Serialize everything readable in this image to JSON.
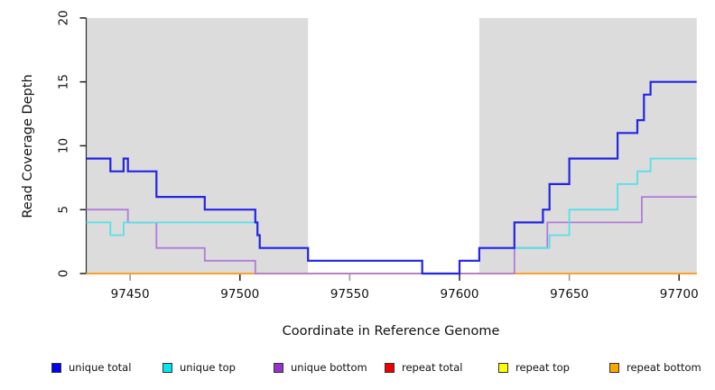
{
  "chart_data": {
    "type": "line",
    "subtype": "step",
    "title": "",
    "xlabel": "Coordinate in Reference Genome",
    "ylabel": "Read Coverage Depth",
    "xlim": [
      97430,
      97708
    ],
    "ylim": [
      0,
      20
    ],
    "grid": false,
    "legend_position": "bottom",
    "x_ticks": [
      {
        "value": 97450,
        "label": "97450",
        "shade": "light"
      },
      {
        "value": 97500,
        "label": "97500",
        "shade": "dark"
      },
      {
        "value": 97550,
        "label": "97550",
        "shade": "light"
      },
      {
        "value": 97600,
        "label": "97600",
        "shade": "dark"
      },
      {
        "value": 97650,
        "label": "97650",
        "shade": "light"
      },
      {
        "value": 97700,
        "label": "97700",
        "shade": "dark"
      }
    ],
    "y_ticks": [
      {
        "value": 0,
        "label": "0"
      },
      {
        "value": 5,
        "label": "5"
      },
      {
        "value": 10,
        "label": "10"
      },
      {
        "value": 15,
        "label": "15"
      },
      {
        "value": 20,
        "label": "20"
      }
    ],
    "shaded_regions": [
      {
        "from": 97430,
        "to": 97531
      },
      {
        "from": 97609,
        "to": 97708
      }
    ],
    "shaded_color": "#dcdcdc",
    "axis_color": "#2b2b2b",
    "minor_tick_color": "#9a9a9a",
    "series": [
      {
        "name": "unique total",
        "color": "#2424e6",
        "legend_color": "#0000ee",
        "steps": [
          [
            97430,
            9
          ],
          [
            97441,
            8
          ],
          [
            97447,
            9
          ],
          [
            97449,
            8
          ],
          [
            97462,
            6
          ],
          [
            97484,
            5
          ],
          [
            97507,
            4
          ],
          [
            97508,
            3
          ],
          [
            97509,
            2
          ],
          [
            97531,
            1
          ],
          [
            97583,
            0
          ],
          [
            97600,
            1
          ],
          [
            97609,
            2
          ],
          [
            97625,
            4
          ],
          [
            97638,
            5
          ],
          [
            97641,
            7
          ],
          [
            97650,
            9
          ],
          [
            97672,
            11
          ],
          [
            97681,
            12
          ],
          [
            97684,
            14
          ],
          [
            97687,
            15
          ]
        ]
      },
      {
        "name": "unique top",
        "color": "#55e0ea",
        "legend_color": "#00e5f0",
        "steps": [
          [
            97430,
            4
          ],
          [
            97441,
            3
          ],
          [
            97447,
            4
          ],
          [
            97508,
            3
          ],
          [
            97509,
            2
          ],
          [
            97531,
            1
          ],
          [
            97583,
            0
          ],
          [
            97600,
            1
          ],
          [
            97609,
            2
          ],
          [
            97641,
            3
          ],
          [
            97650,
            5
          ],
          [
            97672,
            7
          ],
          [
            97681,
            8
          ],
          [
            97687,
            9
          ]
        ]
      },
      {
        "name": "unique bottom",
        "color": "#b07bd9",
        "legend_color": "#9a30cf",
        "steps": [
          [
            97430,
            5
          ],
          [
            97449,
            4
          ],
          [
            97462,
            2
          ],
          [
            97484,
            1
          ],
          [
            97507,
            0
          ],
          [
            97625,
            2
          ],
          [
            97640,
            4
          ],
          [
            97683,
            6
          ]
        ]
      },
      {
        "name": "repeat total",
        "color": "#e03a3a",
        "legend_color": "#ee0000",
        "steps": [
          [
            97430,
            0
          ]
        ]
      },
      {
        "name": "repeat top",
        "color": "#f5f52a",
        "legend_color": "#ffff00",
        "steps": [
          [
            97430,
            0
          ]
        ]
      },
      {
        "name": "repeat bottom",
        "color": "#ffa126",
        "legend_color": "#ffa500",
        "steps": [
          [
            97430,
            0
          ]
        ]
      }
    ]
  }
}
